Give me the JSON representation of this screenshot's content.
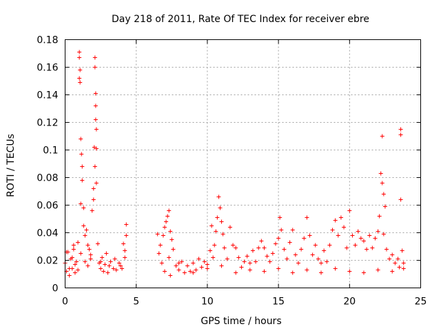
{
  "chart_data": {
    "type": "scatter",
    "title": "Day 218 of 2011, Rate Of TEC Index for receiver ebre",
    "xlabel": "GPS time / hours",
    "ylabel": "ROTI / TECUs",
    "xlim": [
      0,
      25
    ],
    "ylim": [
      0,
      0.18
    ],
    "xticks": [
      0,
      5,
      10,
      15,
      20,
      25
    ],
    "xtick_labels": [
      "0",
      "5",
      "10",
      "15",
      "20",
      "25"
    ],
    "yticks": [
      0,
      0.02,
      0.04,
      0.06,
      0.08,
      0.1,
      0.12,
      0.14,
      0.16,
      0.18
    ],
    "ytick_labels": [
      "0",
      "0.02",
      "0.04",
      "0.06",
      "0.08",
      "0.1",
      "0.12",
      "0.14",
      "0.16",
      "0.18"
    ],
    "grid": true,
    "marker": "+",
    "marker_color": "#ff0000",
    "series": [
      {
        "name": "ROTI",
        "points": [
          [
            0.0,
            0.018
          ],
          [
            0.1,
            0.012
          ],
          [
            0.2,
            0.026
          ],
          [
            0.3,
            0.009
          ],
          [
            0.4,
            0.021
          ],
          [
            0.5,
            0.014
          ],
          [
            0.6,
            0.028
          ],
          [
            0.7,
            0.011
          ],
          [
            0.8,
            0.019
          ],
          [
            0.9,
            0.033
          ],
          [
            1.0,
            0.171
          ],
          [
            1.0,
            0.167
          ],
          [
            1.05,
            0.158
          ],
          [
            1.0,
            0.152
          ],
          [
            1.05,
            0.149
          ],
          [
            1.1,
            0.108
          ],
          [
            1.15,
            0.097
          ],
          [
            1.2,
            0.088
          ],
          [
            1.2,
            0.078
          ],
          [
            1.1,
            0.061
          ],
          [
            1.3,
            0.058
          ],
          [
            1.3,
            0.045
          ],
          [
            1.4,
            0.038
          ],
          [
            1.5,
            0.042
          ],
          [
            1.6,
            0.031
          ],
          [
            1.7,
            0.028
          ],
          [
            1.8,
            0.024
          ],
          [
            1.9,
            0.056
          ],
          [
            2.0,
            0.072
          ],
          [
            2.0,
            0.064
          ],
          [
            2.05,
            0.102
          ],
          [
            2.1,
            0.167
          ],
          [
            2.1,
            0.16
          ],
          [
            2.15,
            0.141
          ],
          [
            2.15,
            0.132
          ],
          [
            2.15,
            0.122
          ],
          [
            2.2,
            0.115
          ],
          [
            2.2,
            0.101
          ],
          [
            2.1,
            0.088
          ],
          [
            2.2,
            0.076
          ],
          [
            2.3,
            0.032
          ],
          [
            2.4,
            0.018
          ],
          [
            2.5,
            0.014
          ],
          [
            2.6,
            0.022
          ],
          [
            2.7,
            0.012
          ],
          [
            2.8,
            0.017
          ],
          [
            2.9,
            0.025
          ],
          [
            3.0,
            0.011
          ],
          [
            3.2,
            0.019
          ],
          [
            3.4,
            0.014
          ],
          [
            3.5,
            0.021
          ],
          [
            3.6,
            0.013
          ],
          [
            3.8,
            0.018
          ],
          [
            3.9,
            0.016
          ],
          [
            4.0,
            0.014
          ],
          [
            4.1,
            0.032
          ],
          [
            4.2,
            0.027
          ],
          [
            4.3,
            0.046
          ],
          [
            4.3,
            0.038
          ],
          [
            4.2,
            0.022
          ],
          [
            0.3,
            0.014
          ],
          [
            0.5,
            0.022
          ],
          [
            0.7,
            0.017
          ],
          [
            0.9,
            0.013
          ],
          [
            1.1,
            0.025
          ],
          [
            1.4,
            0.019
          ],
          [
            1.6,
            0.016
          ],
          [
            1.8,
            0.021
          ],
          [
            2.5,
            0.019
          ],
          [
            3.1,
            0.016
          ],
          [
            6.5,
            0.039
          ],
          [
            6.6,
            0.025
          ],
          [
            6.7,
            0.031
          ],
          [
            6.8,
            0.018
          ],
          [
            6.9,
            0.038
          ],
          [
            7.0,
            0.044
          ],
          [
            7.1,
            0.048
          ],
          [
            7.2,
            0.052
          ],
          [
            7.3,
            0.056
          ],
          [
            7.4,
            0.041
          ],
          [
            7.5,
            0.035
          ],
          [
            7.3,
            0.022
          ],
          [
            7.4,
            0.009
          ],
          [
            7.6,
            0.028
          ],
          [
            7.8,
            0.016
          ],
          [
            8.0,
            0.013
          ],
          [
            8.2,
            0.019
          ],
          [
            8.4,
            0.011
          ],
          [
            8.6,
            0.016
          ],
          [
            8.8,
            0.012
          ],
          [
            9.0,
            0.018
          ],
          [
            9.2,
            0.013
          ],
          [
            9.4,
            0.021
          ],
          [
            9.6,
            0.015
          ],
          [
            9.8,
            0.019
          ],
          [
            10.0,
            0.017
          ],
          [
            10.2,
            0.027
          ],
          [
            10.3,
            0.045
          ],
          [
            10.4,
            0.022
          ],
          [
            10.5,
            0.031
          ],
          [
            10.6,
            0.041
          ],
          [
            10.7,
            0.051
          ],
          [
            10.8,
            0.066
          ],
          [
            10.9,
            0.058
          ],
          [
            11.0,
            0.048
          ],
          [
            11.1,
            0.039
          ],
          [
            11.2,
            0.029
          ],
          [
            11.4,
            0.021
          ],
          [
            11.6,
            0.044
          ],
          [
            11.8,
            0.031
          ],
          [
            12.0,
            0.029
          ],
          [
            12.2,
            0.022
          ],
          [
            12.4,
            0.015
          ],
          [
            12.6,
            0.019
          ],
          [
            12.8,
            0.023
          ],
          [
            13.0,
            0.018
          ],
          [
            13.2,
            0.027
          ],
          [
            13.4,
            0.019
          ],
          [
            13.6,
            0.029
          ],
          [
            13.8,
            0.034
          ],
          [
            14.0,
            0.029
          ],
          [
            14.2,
            0.023
          ],
          [
            14.4,
            0.019
          ],
          [
            14.6,
            0.025
          ],
          [
            14.8,
            0.032
          ],
          [
            15.0,
            0.036
          ],
          [
            15.1,
            0.051
          ],
          [
            15.2,
            0.042
          ],
          [
            15.4,
            0.028
          ],
          [
            15.6,
            0.021
          ],
          [
            15.8,
            0.033
          ],
          [
            16.0,
            0.042
          ],
          [
            16.2,
            0.024
          ],
          [
            16.4,
            0.018
          ],
          [
            16.6,
            0.028
          ],
          [
            16.8,
            0.036
          ],
          [
            17.0,
            0.051
          ],
          [
            17.2,
            0.038
          ],
          [
            17.4,
            0.024
          ],
          [
            17.6,
            0.031
          ],
          [
            17.8,
            0.021
          ],
          [
            18.0,
            0.018
          ],
          [
            18.2,
            0.027
          ],
          [
            18.4,
            0.019
          ],
          [
            18.6,
            0.031
          ],
          [
            18.8,
            0.042
          ],
          [
            19.0,
            0.049
          ],
          [
            19.2,
            0.038
          ],
          [
            19.4,
            0.051
          ],
          [
            19.6,
            0.044
          ],
          [
            19.8,
            0.029
          ],
          [
            20.0,
            0.056
          ],
          [
            20.2,
            0.038
          ],
          [
            20.4,
            0.031
          ],
          [
            20.6,
            0.041
          ],
          [
            20.8,
            0.036
          ],
          [
            21.0,
            0.034
          ],
          [
            21.2,
            0.028
          ],
          [
            21.4,
            0.038
          ],
          [
            21.6,
            0.029
          ],
          [
            21.8,
            0.036
          ],
          [
            22.0,
            0.041
          ],
          [
            22.1,
            0.052
          ],
          [
            22.2,
            0.083
          ],
          [
            22.3,
            0.076
          ],
          [
            22.4,
            0.068
          ],
          [
            22.5,
            0.059
          ],
          [
            22.4,
            0.039
          ],
          [
            22.6,
            0.028
          ],
          [
            22.8,
            0.021
          ],
          [
            23.0,
            0.024
          ],
          [
            23.2,
            0.018
          ],
          [
            23.4,
            0.021
          ],
          [
            23.6,
            0.115
          ],
          [
            23.6,
            0.111
          ],
          [
            23.6,
            0.064
          ],
          [
            23.7,
            0.027
          ],
          [
            23.8,
            0.018
          ],
          [
            22.3,
            0.11
          ],
          [
            23.5,
            0.015
          ],
          [
            7.0,
            0.012
          ],
          [
            8.0,
            0.018
          ],
          [
            9.0,
            0.011
          ],
          [
            10.0,
            0.014
          ],
          [
            11.0,
            0.016
          ],
          [
            12.0,
            0.011
          ],
          [
            13.0,
            0.013
          ],
          [
            14.0,
            0.012
          ],
          [
            15.0,
            0.014
          ],
          [
            16.0,
            0.011
          ],
          [
            17.0,
            0.013
          ],
          [
            18.0,
            0.011
          ],
          [
            19.0,
            0.014
          ],
          [
            20.0,
            0.012
          ],
          [
            21.0,
            0.011
          ],
          [
            22.0,
            0.013
          ],
          [
            23.0,
            0.012
          ],
          [
            23.8,
            0.014
          ],
          [
            0.1,
            0.026
          ],
          [
            0.6,
            0.031
          ]
        ]
      }
    ]
  }
}
